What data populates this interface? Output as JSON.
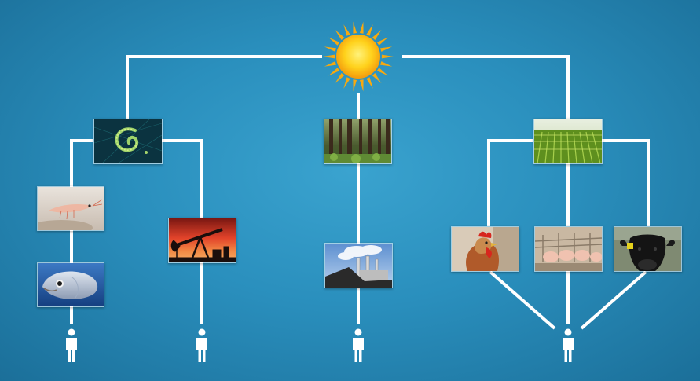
{
  "diagram": {
    "root": {
      "icon": "sun-icon"
    },
    "branches": [
      {
        "name": "ocean-chain",
        "source": {
          "icon": "plankton-image"
        },
        "chains": [
          {
            "steps": [
              "krill-image",
              "fish-image"
            ],
            "end": "person-icon"
          },
          {
            "steps": [
              "oil-pump-image"
            ],
            "end": "person-icon"
          }
        ]
      },
      {
        "name": "forest-chain",
        "source": {
          "icon": "forest-image"
        },
        "chains": [
          {
            "steps": [
              "coal-power-plant-image"
            ],
            "end": "person-icon"
          }
        ]
      },
      {
        "name": "farm-chain",
        "source": {
          "icon": "corn-field-image"
        },
        "chains": [
          {
            "steps": [
              "chicken-image",
              "pigs-image",
              "cow-image"
            ],
            "end": "person-icon"
          }
        ]
      }
    ],
    "colors": {
      "background": "#2a8fbd",
      "connector": "#ffffff",
      "sun": "#f7b90f"
    }
  }
}
